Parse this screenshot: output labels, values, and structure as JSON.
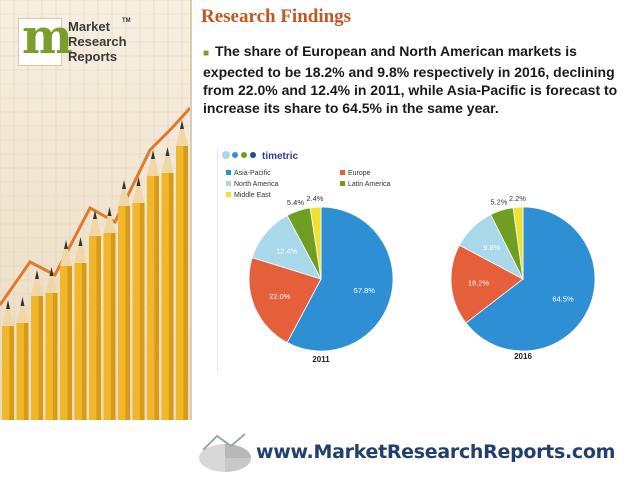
{
  "brand": {
    "logo_letter": "m",
    "logo_words": [
      "Market",
      "Research",
      "Reports"
    ],
    "tm": "TM",
    "accent_color": "#7c9c2b",
    "title_color": "#c75521",
    "url_color": "#21406d"
  },
  "slide": {
    "title": "Research Findings",
    "bullet_icon": "square-bullet-icon",
    "finding": "The share of European and North American markets is expected to be 18.2% and 9.8% respectively in 2016, declining from 22.0% and 12.4% in 2011, while Asia-Pacific is forecast to increase its share to 64.5% in the same year."
  },
  "chart_source": "timetric",
  "footer": {
    "url": "www.MarketResearchReports.com"
  },
  "chart_data": [
    {
      "type": "pie",
      "title": "2011",
      "categories": [
        "Asia-Pacific",
        "Europe",
        "North America",
        "Latin America",
        "Middle East"
      ],
      "values": [
        57.8,
        22.0,
        12.4,
        5.4,
        2.4
      ],
      "value_labels": [
        "57.8%",
        "22.0%",
        "12.4%",
        "5.4%",
        "2.4%"
      ],
      "colors": [
        "#2f8fd4",
        "#e5603a",
        "#a8d8ea",
        "#6e9f22",
        "#f0e030"
      ],
      "legend": "top-left"
    },
    {
      "type": "pie",
      "title": "2016",
      "categories": [
        "Asia-Pacific",
        "Europe",
        "North America",
        "Latin America",
        "Middle East"
      ],
      "values": [
        64.5,
        18.2,
        9.8,
        5.2,
        2.2
      ],
      "value_labels": [
        "64.5%",
        "18.2%",
        "9.8%",
        "5.2%",
        "2.2%"
      ],
      "colors": [
        "#2f8fd4",
        "#e5603a",
        "#a8d8ea",
        "#6e9f22",
        "#f0e030"
      ]
    }
  ]
}
